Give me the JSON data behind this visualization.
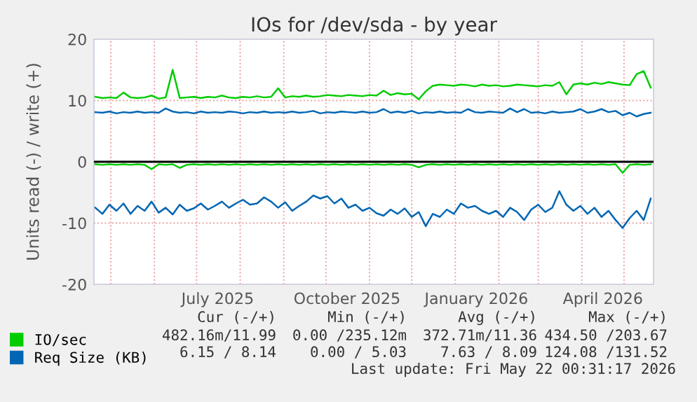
{
  "chart_data": {
    "type": "line",
    "title": "IOs for /dev/sda - by year",
    "ylabel": "Units read (-) / write (+)",
    "x": [
      "2025-04-20",
      "2025-04-25",
      "2025-04-30",
      "2025-05-05",
      "2025-05-10",
      "2025-05-15",
      "2025-05-20",
      "2025-05-25",
      "2025-05-30",
      "2025-06-04",
      "2025-06-09",
      "2025-06-14",
      "2025-06-19",
      "2025-06-24",
      "2025-06-29",
      "2025-07-04",
      "2025-07-09",
      "2025-07-14",
      "2025-07-19",
      "2025-07-24",
      "2025-07-29",
      "2025-08-03",
      "2025-08-08",
      "2025-08-13",
      "2025-08-18",
      "2025-08-23",
      "2025-08-28",
      "2025-09-02",
      "2025-09-07",
      "2025-09-12",
      "2025-09-17",
      "2025-09-22",
      "2025-09-27",
      "2025-10-02",
      "2025-10-07",
      "2025-10-12",
      "2025-10-17",
      "2025-10-22",
      "2025-10-27",
      "2025-11-01",
      "2025-11-06",
      "2025-11-11",
      "2025-11-16",
      "2025-11-21",
      "2025-11-26",
      "2025-12-01",
      "2025-12-06",
      "2025-12-11",
      "2025-12-16",
      "2025-12-21",
      "2025-12-26",
      "2025-12-31",
      "2026-01-05",
      "2026-01-10",
      "2026-01-15",
      "2026-01-20",
      "2026-01-25",
      "2026-01-30",
      "2026-02-04",
      "2026-02-09",
      "2026-02-14",
      "2026-02-19",
      "2026-02-24",
      "2026-03-01",
      "2026-03-06",
      "2026-03-11",
      "2026-03-16",
      "2026-03-21",
      "2026-03-26",
      "2026-03-31",
      "2026-04-05",
      "2026-04-10",
      "2026-04-15",
      "2026-04-20",
      "2026-04-25",
      "2026-04-30",
      "2026-05-05",
      "2026-05-10",
      "2026-05-15",
      "2026-05-20"
    ],
    "series": [
      {
        "name": "IO/sec",
        "color": "#00cc00",
        "values": [
          10.6,
          10.4,
          10.5,
          10.4,
          11.3,
          10.5,
          10.4,
          10.5,
          10.8,
          10.3,
          10.5,
          15.0,
          10.4,
          10.5,
          10.6,
          10.4,
          10.6,
          10.5,
          10.8,
          10.5,
          10.4,
          10.6,
          10.5,
          10.7,
          10.5,
          10.6,
          12.0,
          10.5,
          10.7,
          10.6,
          10.8,
          10.6,
          10.7,
          10.9,
          10.8,
          10.7,
          10.9,
          10.8,
          10.7,
          10.9,
          10.8,
          11.6,
          10.9,
          11.2,
          11.0,
          11.1,
          10.2,
          11.5,
          12.4,
          12.6,
          12.5,
          12.4,
          12.6,
          12.5,
          12.3,
          12.6,
          12.4,
          12.5,
          12.3,
          12.4,
          12.6,
          12.5,
          12.4,
          12.3,
          12.5,
          12.4,
          13.0,
          11.0,
          12.6,
          12.8,
          12.6,
          12.9,
          12.7,
          13.0,
          12.8,
          12.6,
          12.5,
          14.3,
          14.8,
          12.1
        ]
      },
      {
        "color": "#00cc00",
        "values": [
          -0.4,
          -0.5,
          -0.4,
          -0.5,
          -0.4,
          -0.5,
          -0.4,
          -0.5,
          -1.2,
          -0.4,
          -0.5,
          -0.4,
          -1.0,
          -0.5,
          -0.4,
          -0.5,
          -0.4,
          -0.5,
          -0.4,
          -0.5,
          -0.4,
          -0.5,
          -0.4,
          -0.5,
          -0.4,
          -0.5,
          -0.4,
          -0.5,
          -0.4,
          -0.5,
          -0.4,
          -0.5,
          -0.4,
          -0.5,
          -0.4,
          -0.5,
          -0.4,
          -0.5,
          -0.4,
          -0.5,
          -0.4,
          -0.5,
          -0.4,
          -0.5,
          -0.4,
          -0.5,
          -0.9,
          -0.5,
          -0.4,
          -0.5,
          -0.4,
          -0.5,
          -0.4,
          -0.5,
          -0.4,
          -0.5,
          -0.4,
          -0.5,
          -0.4,
          -0.5,
          -0.4,
          -0.5,
          -0.4,
          -0.5,
          -0.4,
          -0.5,
          -0.4,
          -0.5,
          -0.4,
          -0.5,
          -0.4,
          -0.5,
          -0.4,
          -0.5,
          -0.4,
          -1.8,
          -0.5,
          -0.4,
          -0.5,
          -0.4
        ]
      },
      {
        "name": "Req Size (KB)",
        "color": "#0066b3",
        "values": [
          8.1,
          8.0,
          8.2,
          7.9,
          8.1,
          8.0,
          8.2,
          8.0,
          8.1,
          8.0,
          8.7,
          8.2,
          8.0,
          8.1,
          7.9,
          8.2,
          8.0,
          8.1,
          8.0,
          8.2,
          8.1,
          7.9,
          8.1,
          8.0,
          8.2,
          8.0,
          8.1,
          8.0,
          8.2,
          8.0,
          8.1,
          8.3,
          7.9,
          8.1,
          8.0,
          8.2,
          8.1,
          8.0,
          8.2,
          8.0,
          8.1,
          8.6,
          8.0,
          8.2,
          8.0,
          8.3,
          7.9,
          8.1,
          8.0,
          8.2,
          8.0,
          8.1,
          8.0,
          8.6,
          8.1,
          8.0,
          8.2,
          8.1,
          8.0,
          8.7,
          8.1,
          8.6,
          8.0,
          8.1,
          7.9,
          8.2,
          8.0,
          8.1,
          8.2,
          8.6,
          8.0,
          8.2,
          8.6,
          8.1,
          8.3,
          7.6,
          8.0,
          7.4,
          7.8,
          8.0
        ]
      },
      {
        "color": "#0066b3",
        "values": [
          -7.5,
          -8.5,
          -7.0,
          -8.0,
          -6.8,
          -8.5,
          -7.2,
          -8.0,
          -6.5,
          -8.3,
          -7.5,
          -8.6,
          -7.0,
          -8.0,
          -7.6,
          -6.8,
          -7.8,
          -7.2,
          -6.5,
          -7.5,
          -6.8,
          -6.2,
          -7.0,
          -6.8,
          -5.8,
          -6.5,
          -7.5,
          -6.6,
          -8.0,
          -7.2,
          -6.5,
          -5.5,
          -6.0,
          -5.6,
          -6.8,
          -6.0,
          -7.5,
          -7.0,
          -8.0,
          -7.5,
          -8.4,
          -8.8,
          -7.8,
          -8.5,
          -7.6,
          -9.0,
          -8.2,
          -10.5,
          -8.5,
          -9.0,
          -7.8,
          -8.5,
          -6.8,
          -7.5,
          -7.2,
          -8.0,
          -8.5,
          -8.0,
          -9.0,
          -7.5,
          -8.2,
          -9.5,
          -7.8,
          -7.0,
          -8.2,
          -7.5,
          -4.8,
          -7.0,
          -8.0,
          -7.2,
          -8.5,
          -7.5,
          -9.0,
          -8.0,
          -9.5,
          -10.8,
          -9.2,
          -8.0,
          -9.5,
          -6.0
        ]
      }
    ],
    "xlim": [
      "2025-04-19",
      "2026-05-22"
    ],
    "xticks": [
      {
        "value": "2025-07-16",
        "label": "July 2025"
      },
      {
        "value": "2025-10-16",
        "label": "October 2025"
      },
      {
        "value": "2026-01-16",
        "label": "January 2026"
      },
      {
        "value": "2026-04-16",
        "label": "April 2026"
      }
    ],
    "ylim": [
      -20,
      20
    ],
    "yticks": [
      -20,
      -10,
      0,
      10,
      20
    ],
    "grid": true,
    "legend": "bottom",
    "ref_lines": [
      {
        "axis": "y",
        "value": 0,
        "color": "#000000"
      }
    ],
    "annotations": [
      "Cur (-/+)",
      "Min (-/+)",
      "Avg (-/+)",
      "Max (-/+)",
      "482.16m/11.99",
      "0.00 /235.12m",
      "372.71m/11.36",
      "434.50 /203.67",
      "6.15 / 8.14",
      "0.00 / 5.03",
      "7.63 / 8.09",
      "124.08 /131.52",
      "Last update: Fri May 22 00:31:17 2026"
    ]
  }
}
